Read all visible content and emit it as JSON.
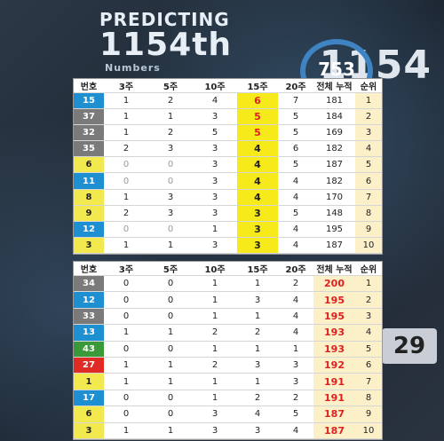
{
  "header": {
    "title": "PREDICTING",
    "number": "1154th",
    "subtitle": "Numbers",
    "right_number": "1154",
    "gauge_number": "753",
    "corner_number": "29"
  },
  "columns": [
    "번호",
    "3주",
    "5주",
    "10주",
    "15주",
    "20주",
    "전체 누적",
    "순위"
  ],
  "colors": {
    "yellow": "#f2e94e",
    "blue": "#1e8fd0",
    "red": "#e02a24",
    "grey": "#7a7a7a",
    "green": "#3a9a3a",
    "highlight": "#f7ea1a"
  },
  "table_top": [
    {
      "num": "15",
      "color": "blue",
      "w3": "1",
      "w5": "2",
      "w10": "4",
      "w15": "6",
      "w20": "7",
      "total": "181",
      "rank": "1",
      "hl": "yellow-red"
    },
    {
      "num": "37",
      "color": "grey",
      "w3": "1",
      "w5": "1",
      "w10": "3",
      "w15": "5",
      "w20": "5",
      "total": "184",
      "rank": "2",
      "hl": "yellow-red"
    },
    {
      "num": "32",
      "color": "grey",
      "w3": "1",
      "w5": "2",
      "w10": "5",
      "w15": "5",
      "w20": "5",
      "total": "169",
      "rank": "3",
      "hl": "yellow-red"
    },
    {
      "num": "35",
      "color": "grey",
      "w3": "2",
      "w5": "3",
      "w10": "3",
      "w15": "4",
      "w20": "6",
      "total": "182",
      "rank": "4",
      "hl": ""
    },
    {
      "num": "6",
      "color": "yellow",
      "w3": "0",
      "w5": "0",
      "w10": "3",
      "w15": "4",
      "w20": "5",
      "total": "187",
      "rank": "5",
      "hl": "",
      "g3": true,
      "g5": true
    },
    {
      "num": "11",
      "color": "blue",
      "w3": "0",
      "w5": "0",
      "w10": "3",
      "w15": "4",
      "w20": "4",
      "total": "182",
      "rank": "6",
      "hl": "",
      "g3": true,
      "g5": true
    },
    {
      "num": "8",
      "color": "yellow",
      "w3": "1",
      "w5": "3",
      "w10": "3",
      "w15": "4",
      "w20": "4",
      "total": "170",
      "rank": "7",
      "hl": ""
    },
    {
      "num": "9",
      "color": "yellow",
      "w3": "2",
      "w5": "3",
      "w10": "3",
      "w15": "3",
      "w20": "5",
      "total": "148",
      "rank": "8",
      "hl": ""
    },
    {
      "num": "12",
      "color": "blue",
      "w3": "0",
      "w5": "0",
      "w10": "1",
      "w15": "3",
      "w20": "4",
      "total": "195",
      "rank": "9",
      "hl": "",
      "g3": true,
      "g5": true
    },
    {
      "num": "3",
      "color": "yellow",
      "w3": "1",
      "w5": "1",
      "w10": "3",
      "w15": "3",
      "w20": "4",
      "total": "187",
      "rank": "10",
      "hl": ""
    }
  ],
  "table_bottom": [
    {
      "num": "34",
      "color": "grey",
      "w3": "0",
      "w5": "0",
      "w10": "1",
      "w15": "1",
      "w20": "2",
      "total": "200",
      "rank": "1"
    },
    {
      "num": "12",
      "color": "blue",
      "w3": "0",
      "w5": "0",
      "w10": "1",
      "w15": "3",
      "w20": "4",
      "total": "195",
      "rank": "2"
    },
    {
      "num": "33",
      "color": "grey",
      "w3": "0",
      "w5": "0",
      "w10": "1",
      "w15": "1",
      "w20": "4",
      "total": "195",
      "rank": "3"
    },
    {
      "num": "13",
      "color": "blue",
      "w3": "1",
      "w5": "1",
      "w10": "2",
      "w15": "2",
      "w20": "4",
      "total": "193",
      "rank": "4"
    },
    {
      "num": "43",
      "color": "green",
      "w3": "0",
      "w5": "0",
      "w10": "1",
      "w15": "1",
      "w20": "1",
      "total": "193",
      "rank": "5"
    },
    {
      "num": "27",
      "color": "red",
      "w3": "1",
      "w5": "1",
      "w10": "2",
      "w15": "3",
      "w20": "3",
      "total": "192",
      "rank": "6"
    },
    {
      "num": "1",
      "color": "yellow",
      "w3": "1",
      "w5": "1",
      "w10": "1",
      "w15": "1",
      "w20": "3",
      "total": "191",
      "rank": "7"
    },
    {
      "num": "17",
      "color": "blue",
      "w3": "0",
      "w5": "0",
      "w10": "1",
      "w15": "2",
      "w20": "2",
      "total": "191",
      "rank": "8"
    },
    {
      "num": "6",
      "color": "yellow",
      "w3": "0",
      "w5": "0",
      "w10": "3",
      "w15": "4",
      "w20": "5",
      "total": "187",
      "rank": "9"
    },
    {
      "num": "3",
      "color": "yellow",
      "w3": "1",
      "w5": "1",
      "w10": "3",
      "w15": "3",
      "w20": "4",
      "total": "187",
      "rank": "10"
    }
  ]
}
